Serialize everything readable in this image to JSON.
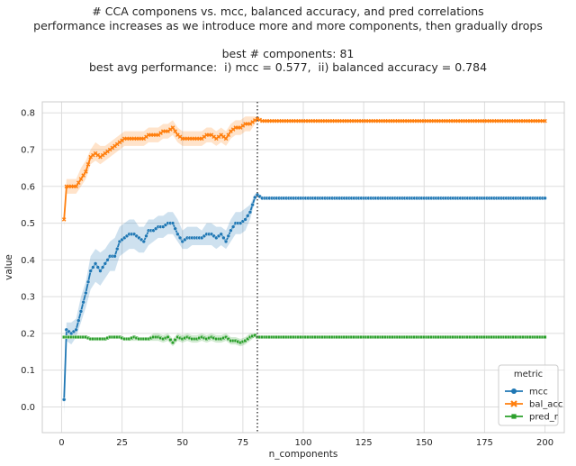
{
  "title_lines": [
    "# CCA componens vs. mcc, balanced accuracy, and pred correlations",
    "performance increases as we introduce more and more components, then gradually drops",
    "best # components: 81",
    "best avg performance:  i) mcc = 0.577,  ii) balanced accuracy = 0.784"
  ],
  "chart_data": {
    "type": "line",
    "xlabel": "n_components",
    "ylabel": "value",
    "xlim": [
      -8,
      208
    ],
    "ylim": [
      -0.07,
      0.83
    ],
    "x_ticks": [
      0,
      25,
      50,
      75,
      100,
      125,
      150,
      175,
      200
    ],
    "y_ticks": [
      0.0,
      0.1,
      0.2,
      0.3,
      0.4,
      0.5,
      0.6,
      0.7,
      0.8
    ],
    "grid": true,
    "vline_x": 81,
    "legend": {
      "title": "metric",
      "placement": "lower-right"
    },
    "series": [
      {
        "name": "mcc",
        "color": "#1f77b4",
        "marker": "circle",
        "points": [
          [
            1,
            0.02
          ],
          [
            2,
            0.21
          ],
          [
            4,
            0.2
          ],
          [
            6,
            0.21
          ],
          [
            8,
            0.26
          ],
          [
            10,
            0.31
          ],
          [
            12,
            0.37
          ],
          [
            14,
            0.39
          ],
          [
            16,
            0.37
          ],
          [
            18,
            0.39
          ],
          [
            20,
            0.41
          ],
          [
            22,
            0.41
          ],
          [
            24,
            0.45
          ],
          [
            26,
            0.46
          ],
          [
            28,
            0.47
          ],
          [
            30,
            0.47
          ],
          [
            32,
            0.46
          ],
          [
            34,
            0.45
          ],
          [
            36,
            0.48
          ],
          [
            38,
            0.48
          ],
          [
            40,
            0.49
          ],
          [
            42,
            0.49
          ],
          [
            44,
            0.5
          ],
          [
            46,
            0.5
          ],
          [
            48,
            0.47
          ],
          [
            50,
            0.45
          ],
          [
            52,
            0.46
          ],
          [
            54,
            0.46
          ],
          [
            56,
            0.46
          ],
          [
            58,
            0.46
          ],
          [
            60,
            0.47
          ],
          [
            62,
            0.47
          ],
          [
            64,
            0.46
          ],
          [
            66,
            0.47
          ],
          [
            68,
            0.45
          ],
          [
            70,
            0.48
          ],
          [
            72,
            0.5
          ],
          [
            74,
            0.5
          ],
          [
            76,
            0.51
          ],
          [
            78,
            0.53
          ],
          [
            80,
            0.57
          ],
          [
            81,
            0.577
          ],
          [
            83,
            0.568
          ],
          [
            200,
            0.568
          ]
        ],
        "band": [
          [
            1,
            -0.02,
            0.07
          ],
          [
            2,
            0.18,
            0.23
          ],
          [
            4,
            0.17,
            0.23
          ],
          [
            6,
            0.19,
            0.24
          ],
          [
            8,
            0.23,
            0.3
          ],
          [
            10,
            0.27,
            0.34
          ],
          [
            12,
            0.32,
            0.41
          ],
          [
            14,
            0.34,
            0.43
          ],
          [
            16,
            0.33,
            0.42
          ],
          [
            18,
            0.35,
            0.43
          ],
          [
            20,
            0.37,
            0.45
          ],
          [
            22,
            0.37,
            0.46
          ],
          [
            24,
            0.41,
            0.49
          ],
          [
            26,
            0.42,
            0.5
          ],
          [
            28,
            0.43,
            0.51
          ],
          [
            30,
            0.43,
            0.51
          ],
          [
            32,
            0.42,
            0.49
          ],
          [
            34,
            0.42,
            0.49
          ],
          [
            36,
            0.44,
            0.51
          ],
          [
            38,
            0.45,
            0.51
          ],
          [
            40,
            0.46,
            0.52
          ],
          [
            42,
            0.46,
            0.52
          ],
          [
            44,
            0.47,
            0.53
          ],
          [
            46,
            0.47,
            0.53
          ],
          [
            48,
            0.45,
            0.51
          ],
          [
            50,
            0.43,
            0.48
          ],
          [
            52,
            0.43,
            0.49
          ],
          [
            54,
            0.44,
            0.49
          ],
          [
            56,
            0.44,
            0.49
          ],
          [
            58,
            0.44,
            0.48
          ],
          [
            60,
            0.44,
            0.5
          ],
          [
            62,
            0.44,
            0.5
          ],
          [
            64,
            0.43,
            0.49
          ],
          [
            66,
            0.44,
            0.49
          ],
          [
            68,
            0.43,
            0.48
          ],
          [
            70,
            0.45,
            0.51
          ],
          [
            72,
            0.47,
            0.53
          ],
          [
            74,
            0.47,
            0.53
          ],
          [
            76,
            0.48,
            0.54
          ],
          [
            78,
            0.51,
            0.55
          ],
          [
            80,
            0.56,
            0.58
          ],
          [
            81,
            0.575,
            0.58
          ],
          [
            83,
            0.567,
            0.569
          ],
          [
            200,
            0.567,
            0.569
          ]
        ]
      },
      {
        "name": "bal_acc",
        "color": "#ff7f0e",
        "marker": "x",
        "points": [
          [
            1,
            0.51
          ],
          [
            2,
            0.6
          ],
          [
            4,
            0.6
          ],
          [
            6,
            0.6
          ],
          [
            8,
            0.62
          ],
          [
            10,
            0.64
          ],
          [
            12,
            0.68
          ],
          [
            14,
            0.69
          ],
          [
            16,
            0.68
          ],
          [
            18,
            0.69
          ],
          [
            20,
            0.7
          ],
          [
            22,
            0.71
          ],
          [
            24,
            0.72
          ],
          [
            26,
            0.73
          ],
          [
            28,
            0.73
          ],
          [
            30,
            0.73
          ],
          [
            32,
            0.73
          ],
          [
            34,
            0.73
          ],
          [
            36,
            0.74
          ],
          [
            38,
            0.74
          ],
          [
            40,
            0.74
          ],
          [
            42,
            0.75
          ],
          [
            44,
            0.75
          ],
          [
            46,
            0.76
          ],
          [
            48,
            0.74
          ],
          [
            50,
            0.73
          ],
          [
            52,
            0.73
          ],
          [
            54,
            0.73
          ],
          [
            56,
            0.73
          ],
          [
            58,
            0.73
          ],
          [
            60,
            0.74
          ],
          [
            62,
            0.74
          ],
          [
            64,
            0.73
          ],
          [
            66,
            0.74
          ],
          [
            68,
            0.73
          ],
          [
            70,
            0.75
          ],
          [
            72,
            0.76
          ],
          [
            74,
            0.76
          ],
          [
            76,
            0.77
          ],
          [
            78,
            0.77
          ],
          [
            80,
            0.78
          ],
          [
            81,
            0.784
          ],
          [
            83,
            0.778
          ],
          [
            200,
            0.778
          ]
        ],
        "band": [
          [
            1,
            0.49,
            0.53
          ],
          [
            2,
            0.58,
            0.62
          ],
          [
            4,
            0.58,
            0.62
          ],
          [
            6,
            0.58,
            0.62
          ],
          [
            8,
            0.6,
            0.65
          ],
          [
            10,
            0.62,
            0.67
          ],
          [
            12,
            0.66,
            0.7
          ],
          [
            14,
            0.67,
            0.72
          ],
          [
            16,
            0.66,
            0.71
          ],
          [
            18,
            0.67,
            0.71
          ],
          [
            20,
            0.68,
            0.72
          ],
          [
            22,
            0.69,
            0.73
          ],
          [
            24,
            0.7,
            0.74
          ],
          [
            26,
            0.71,
            0.75
          ],
          [
            28,
            0.71,
            0.75
          ],
          [
            30,
            0.71,
            0.75
          ],
          [
            32,
            0.71,
            0.75
          ],
          [
            34,
            0.71,
            0.75
          ],
          [
            36,
            0.72,
            0.76
          ],
          [
            38,
            0.72,
            0.76
          ],
          [
            40,
            0.72,
            0.76
          ],
          [
            42,
            0.73,
            0.77
          ],
          [
            44,
            0.73,
            0.77
          ],
          [
            46,
            0.74,
            0.78
          ],
          [
            48,
            0.72,
            0.76
          ],
          [
            50,
            0.71,
            0.75
          ],
          [
            52,
            0.71,
            0.75
          ],
          [
            54,
            0.71,
            0.75
          ],
          [
            56,
            0.71,
            0.75
          ],
          [
            58,
            0.71,
            0.75
          ],
          [
            60,
            0.72,
            0.76
          ],
          [
            62,
            0.72,
            0.76
          ],
          [
            64,
            0.71,
            0.75
          ],
          [
            66,
            0.72,
            0.76
          ],
          [
            68,
            0.71,
            0.75
          ],
          [
            70,
            0.73,
            0.77
          ],
          [
            72,
            0.74,
            0.78
          ],
          [
            74,
            0.74,
            0.78
          ],
          [
            76,
            0.75,
            0.79
          ],
          [
            78,
            0.75,
            0.79
          ],
          [
            80,
            0.77,
            0.79
          ],
          [
            81,
            0.782,
            0.786
          ],
          [
            83,
            0.777,
            0.779
          ],
          [
            200,
            0.777,
            0.779
          ]
        ]
      },
      {
        "name": "pred_r",
        "color": "#2ca02c",
        "marker": "square",
        "points": [
          [
            1,
            0.19
          ],
          [
            2,
            0.19
          ],
          [
            4,
            0.19
          ],
          [
            6,
            0.19
          ],
          [
            8,
            0.19
          ],
          [
            10,
            0.19
          ],
          [
            12,
            0.185
          ],
          [
            14,
            0.185
          ],
          [
            16,
            0.185
          ],
          [
            18,
            0.185
          ],
          [
            20,
            0.19
          ],
          [
            22,
            0.19
          ],
          [
            24,
            0.19
          ],
          [
            26,
            0.185
          ],
          [
            28,
            0.185
          ],
          [
            30,
            0.19
          ],
          [
            32,
            0.185
          ],
          [
            34,
            0.185
          ],
          [
            36,
            0.185
          ],
          [
            38,
            0.19
          ],
          [
            40,
            0.19
          ],
          [
            42,
            0.185
          ],
          [
            44,
            0.19
          ],
          [
            46,
            0.175
          ],
          [
            48,
            0.19
          ],
          [
            50,
            0.185
          ],
          [
            52,
            0.19
          ],
          [
            54,
            0.185
          ],
          [
            56,
            0.185
          ],
          [
            58,
            0.19
          ],
          [
            60,
            0.185
          ],
          [
            62,
            0.19
          ],
          [
            64,
            0.185
          ],
          [
            66,
            0.185
          ],
          [
            68,
            0.19
          ],
          [
            70,
            0.18
          ],
          [
            72,
            0.18
          ],
          [
            74,
            0.175
          ],
          [
            76,
            0.18
          ],
          [
            78,
            0.19
          ],
          [
            80,
            0.195
          ],
          [
            81,
            0.19
          ],
          [
            83,
            0.19
          ],
          [
            200,
            0.19
          ]
        ],
        "band": [
          [
            1,
            0.185,
            0.195
          ],
          [
            2,
            0.185,
            0.195
          ],
          [
            4,
            0.185,
            0.195
          ],
          [
            6,
            0.185,
            0.195
          ],
          [
            8,
            0.185,
            0.195
          ],
          [
            10,
            0.185,
            0.195
          ],
          [
            12,
            0.18,
            0.19
          ],
          [
            14,
            0.18,
            0.19
          ],
          [
            16,
            0.18,
            0.19
          ],
          [
            18,
            0.18,
            0.19
          ],
          [
            20,
            0.185,
            0.195
          ],
          [
            22,
            0.185,
            0.195
          ],
          [
            24,
            0.185,
            0.195
          ],
          [
            26,
            0.18,
            0.19
          ],
          [
            28,
            0.18,
            0.19
          ],
          [
            30,
            0.18,
            0.195
          ],
          [
            32,
            0.18,
            0.19
          ],
          [
            34,
            0.18,
            0.19
          ],
          [
            36,
            0.18,
            0.19
          ],
          [
            38,
            0.18,
            0.2
          ],
          [
            40,
            0.18,
            0.2
          ],
          [
            42,
            0.175,
            0.195
          ],
          [
            44,
            0.18,
            0.2
          ],
          [
            46,
            0.165,
            0.185
          ],
          [
            48,
            0.18,
            0.2
          ],
          [
            50,
            0.175,
            0.195
          ],
          [
            52,
            0.18,
            0.2
          ],
          [
            54,
            0.175,
            0.195
          ],
          [
            56,
            0.175,
            0.195
          ],
          [
            58,
            0.18,
            0.2
          ],
          [
            60,
            0.175,
            0.195
          ],
          [
            62,
            0.18,
            0.2
          ],
          [
            64,
            0.175,
            0.195
          ],
          [
            66,
            0.175,
            0.195
          ],
          [
            68,
            0.18,
            0.2
          ],
          [
            70,
            0.17,
            0.19
          ],
          [
            72,
            0.17,
            0.19
          ],
          [
            74,
            0.165,
            0.185
          ],
          [
            76,
            0.17,
            0.19
          ],
          [
            78,
            0.18,
            0.2
          ],
          [
            80,
            0.19,
            0.2
          ],
          [
            81,
            0.188,
            0.192
          ],
          [
            83,
            0.188,
            0.192
          ],
          [
            200,
            0.188,
            0.192
          ]
        ]
      }
    ]
  }
}
